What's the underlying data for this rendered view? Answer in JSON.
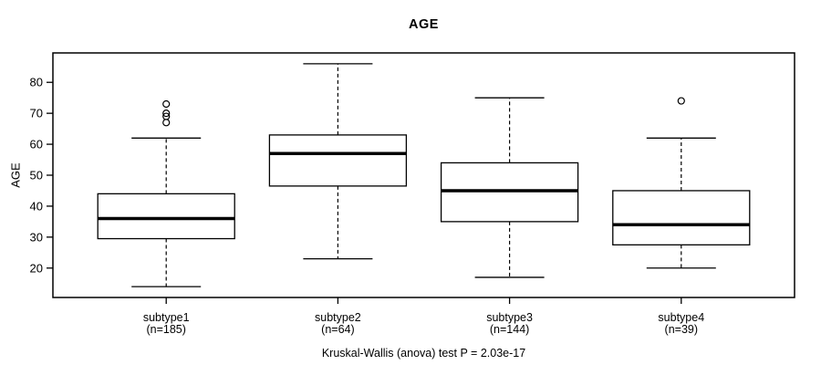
{
  "chart_data": {
    "type": "boxplot",
    "title": "AGE",
    "ylabel": "AGE",
    "caption": "Kruskal-Wallis (anova) test P = 2.03e-17",
    "ylim": [
      10.5,
      89.5
    ],
    "yticks": [
      20,
      30,
      40,
      50,
      60,
      70,
      80
    ],
    "categories": [
      "subtype1",
      "subtype2",
      "subtype3",
      "subtype4"
    ],
    "series": [
      {
        "label": "subtype1",
        "sublabel": "(n=185)",
        "n": 185,
        "whisker_low": 14,
        "q1": 29.5,
        "median": 36,
        "q3": 44,
        "whisker_high": 62,
        "outliers": [
          67,
          69,
          70,
          73
        ]
      },
      {
        "label": "subtype2",
        "sublabel": "(n=64)",
        "n": 64,
        "whisker_low": 23,
        "q1": 46.5,
        "median": 57,
        "q3": 63,
        "whisker_high": 86,
        "outliers": []
      },
      {
        "label": "subtype3",
        "sublabel": "(n=144)",
        "n": 144,
        "whisker_low": 17,
        "q1": 35,
        "median": 45,
        "q3": 54,
        "whisker_high": 75,
        "outliers": []
      },
      {
        "label": "subtype4",
        "sublabel": "(n=39)",
        "n": 39,
        "whisker_low": 20,
        "q1": 27.5,
        "median": 34,
        "q3": 45,
        "whisker_high": 62,
        "outliers": [
          74
        ]
      }
    ],
    "legend": null,
    "grid": false,
    "colors": {
      "line": "#000000",
      "box_fill": "#ffffff",
      "background": "#ffffff"
    }
  }
}
